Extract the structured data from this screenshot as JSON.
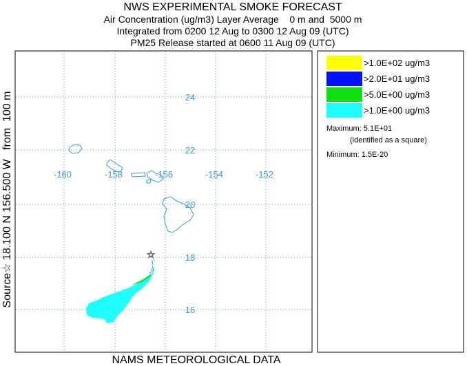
{
  "header": {
    "title": "NWS EXPERIMENTAL SMOKE FORECAST",
    "lines": [
      "Air Concentration (ug/m3) Layer Average    0 m and  5000 m",
      "Integrated from 0200 12 Aug to 0300 12 Aug 09 (UTC)",
      "PM25 Release started at 0600 11 Aug 09 (UTC)"
    ]
  },
  "map": {
    "lat_labels": [
      "24",
      "22",
      "20",
      "18",
      "16"
    ],
    "lon_labels": [
      "-160",
      "-158",
      "-156",
      "-154",
      "-152"
    ],
    "source_label": "Source☆ 18.100 N 156.500 W   from  100 m",
    "footer": "NAMS METEOROLOGICAL DATA"
  },
  "legend": {
    "items": [
      {
        "label": ">1.0E+02 ug/m3",
        "color": "#ffff00"
      },
      {
        "label": ">2.0E+01 ug/m3",
        "color": "#0010ff"
      },
      {
        "label": ">5.0E+00 ug/m3",
        "color": "#10e010"
      },
      {
        "label": ">1.0E+00 ug/m3",
        "color": "#20ffff"
      }
    ],
    "maximum": "Maximum: 5.1E+01",
    "max_note": "(identified as a square)",
    "minimum": "Minimum: 1.5E-20"
  }
}
